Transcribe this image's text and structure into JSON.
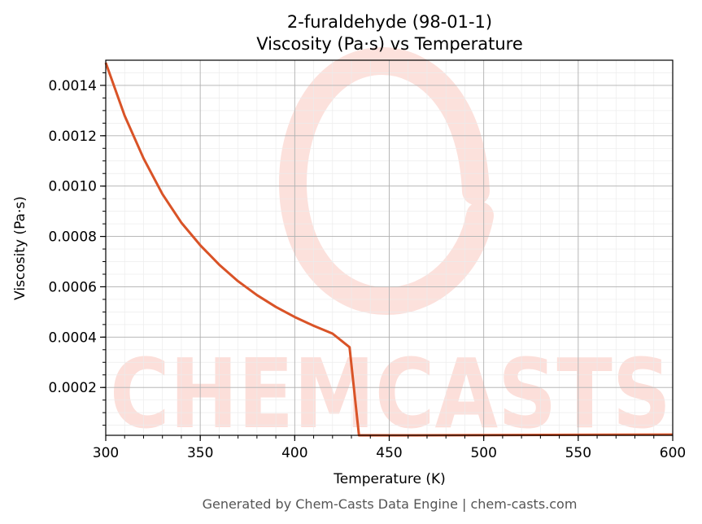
{
  "chart_data": {
    "type": "line",
    "title": "2-furaldehyde (98-01-1)",
    "subtitle": "Viscosity (Pa·s) vs Temperature",
    "xlabel": "Temperature (K)",
    "ylabel": "Viscosity (Pa·s)",
    "xlim": [
      300,
      600
    ],
    "ylim": [
      1e-05,
      0.0015
    ],
    "x_ticks": [
      "300",
      "350",
      "400",
      "450",
      "500",
      "550",
      "600"
    ],
    "y_ticks": [
      "0.0002",
      "0.0004",
      "0.0006",
      "0.0008",
      "0.0010",
      "0.0012",
      "0.0014"
    ],
    "grid": true,
    "series": [
      {
        "color": "#d95327",
        "x": [
          300,
          310,
          320,
          330,
          340,
          350,
          360,
          370,
          380,
          390,
          400,
          410,
          420,
          429,
          434,
          440,
          460,
          500,
          550,
          600
        ],
        "y": [
          0.00149,
          0.00128,
          0.00111,
          0.000968,
          0.000855,
          0.000765,
          0.000688,
          0.000622,
          0.000567,
          0.00052,
          0.00048,
          0.000445,
          0.000414,
          0.00036,
          1e-05,
          1e-05,
          1e-05,
          1.1e-05,
          1.2e-05,
          1.3e-05
        ]
      }
    ]
  },
  "watermark": {
    "text": "CHEMCASTS",
    "color": "#fcdcd6"
  },
  "footer": "Generated by Chem-Casts Data Engine | chem-casts.com"
}
